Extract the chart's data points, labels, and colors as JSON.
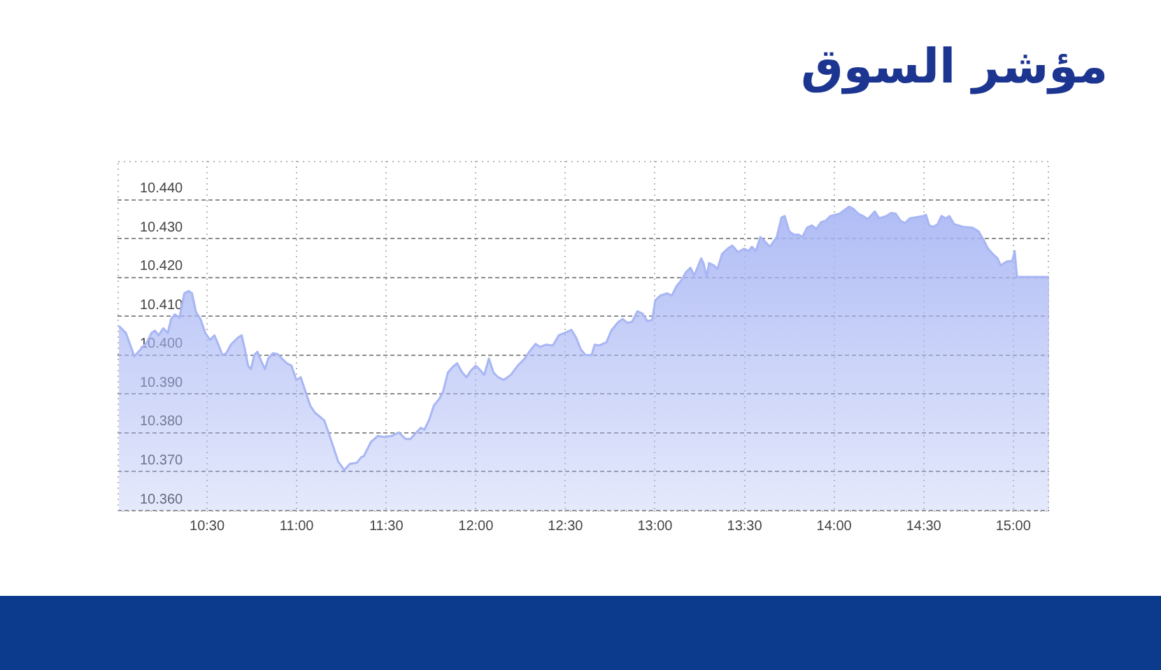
{
  "chart_data": {
    "type": "area",
    "title": "مؤشر السوق",
    "color": "#a8b6f4",
    "grid": true,
    "xlim": [
      10,
      15.2
    ],
    "ylim": [
      10.36,
      10.45
    ],
    "xticks": [
      {
        "value": 10.5,
        "label": "10:30"
      },
      {
        "value": 11,
        "label": "11:00"
      },
      {
        "value": 11.5,
        "label": "11:30"
      },
      {
        "value": 12,
        "label": "12:00"
      },
      {
        "value": 12.5,
        "label": "12:30"
      },
      {
        "value": 13,
        "label": "13:00"
      },
      {
        "value": 13.5,
        "label": "13:30"
      },
      {
        "value": 14,
        "label": "14:00"
      },
      {
        "value": 14.5,
        "label": "14:30"
      },
      {
        "value": 15,
        "label": "15:00"
      }
    ],
    "yticks": [
      {
        "value": 10.36,
        "label": "10.360"
      },
      {
        "value": 10.37,
        "label": "10.370"
      },
      {
        "value": 10.38,
        "label": "10.380"
      },
      {
        "value": 10.39,
        "label": "10.390"
      },
      {
        "value": 10.4,
        "label": "10.400"
      },
      {
        "value": 10.41,
        "label": "10.410"
      },
      {
        "value": 10.42,
        "label": "10.420"
      },
      {
        "value": 10.43,
        "label": "10.430"
      },
      {
        "value": 10.44,
        "label": "10.440"
      }
    ],
    "x": [
      10.008,
      10.047,
      10.094,
      10.164,
      10.19,
      10.209,
      10.229,
      10.256,
      10.281,
      10.299,
      10.32,
      10.346,
      10.373,
      10.398,
      10.416,
      10.438,
      10.463,
      10.49,
      10.516,
      10.541,
      10.563,
      10.586,
      10.607,
      10.633,
      10.672,
      10.693,
      10.711,
      10.729,
      10.745,
      10.763,
      10.781,
      10.802,
      10.823,
      10.841,
      10.867,
      10.893,
      10.945,
      10.971,
      10.998,
      11.023,
      11.049,
      11.076,
      11.102,
      11.154,
      11.18,
      11.206,
      11.232,
      11.266,
      11.297,
      11.336,
      11.362,
      11.375,
      11.414,
      11.453,
      11.492,
      11.531,
      11.57,
      11.609,
      11.635,
      11.662,
      11.693,
      11.713,
      11.74,
      11.766,
      11.797,
      11.818,
      11.844,
      11.87,
      11.896,
      11.922,
      11.948,
      11.974,
      12.0,
      12.026,
      12.047,
      12.073,
      12.099,
      12.125,
      12.156,
      12.195,
      12.234,
      12.273,
      12.299,
      12.334,
      12.359,
      12.391,
      12.43,
      12.463,
      12.495,
      12.534,
      12.56,
      12.586,
      12.612,
      12.646,
      12.664,
      12.69,
      12.729,
      12.756,
      12.795,
      12.82,
      12.846,
      12.873,
      12.902,
      12.93,
      12.957,
      12.984,
      13.002,
      13.029,
      13.068,
      13.094,
      13.12,
      13.151,
      13.172,
      13.198,
      13.219,
      13.237,
      13.258,
      13.271,
      13.289,
      13.302,
      13.328,
      13.349,
      13.375,
      13.406,
      13.432,
      13.463,
      13.498,
      13.523,
      13.541,
      13.563,
      13.588,
      13.615,
      13.641,
      13.68,
      13.706,
      13.724,
      13.75,
      13.776,
      13.802,
      13.823,
      13.849,
      13.875,
      13.901,
      13.927,
      13.953,
      13.979,
      14.031,
      14.057,
      14.084,
      14.109,
      14.135,
      14.162,
      14.188,
      14.227,
      14.252,
      14.291,
      14.318,
      14.344,
      14.37,
      14.396,
      14.422,
      14.495,
      14.513,
      14.531,
      14.552,
      14.578,
      14.599,
      14.625,
      14.643,
      14.67,
      14.721,
      14.773,
      14.807,
      14.834,
      14.859,
      14.885,
      14.912,
      14.93,
      14.963,
      14.995,
      15.008,
      15.021,
      15.2
    ],
    "values": [
      10.4075,
      10.4057,
      10.3997,
      10.4033,
      10.4057,
      10.4063,
      10.4051,
      10.4069,
      10.4057,
      10.4093,
      10.4105,
      10.4097,
      10.4159,
      10.4165,
      10.4159,
      10.4111,
      10.4093,
      10.4057,
      10.4039,
      10.4051,
      10.4027,
      10.4,
      10.4005,
      10.4027,
      10.4045,
      10.4051,
      10.4015,
      10.3973,
      10.3964,
      10.4,
      10.4009,
      10.3985,
      10.3964,
      10.3991,
      10.4005,
      10.4003,
      10.3979,
      10.3973,
      10.3936,
      10.3943,
      10.3907,
      10.387,
      10.3852,
      10.3832,
      10.3798,
      10.3762,
      10.3726,
      10.3704,
      10.372,
      10.3723,
      10.3738,
      10.374,
      10.3776,
      10.3792,
      10.3789,
      10.3792,
      10.3801,
      10.3784,
      10.3784,
      10.3798,
      10.3813,
      10.3808,
      10.3834,
      10.387,
      10.3888,
      10.3907,
      10.3955,
      10.3969,
      10.3979,
      10.3957,
      10.3943,
      10.3961,
      10.3973,
      10.3961,
      10.3949,
      10.3991,
      10.3955,
      10.3943,
      10.3936,
      10.3949,
      10.3973,
      10.3991,
      10.4009,
      10.4029,
      10.4021,
      10.4027,
      10.4025,
      10.4051,
      10.4057,
      10.4065,
      10.4045,
      10.4015,
      10.4,
      10.4,
      10.4027,
      10.4025,
      10.4033,
      10.4063,
      10.4085,
      10.4093,
      10.4083,
      10.4086,
      10.4113,
      10.4107,
      10.4088,
      10.409,
      10.4141,
      10.4153,
      10.4159,
      10.4153,
      10.4177,
      10.4195,
      10.4213,
      10.4225,
      10.4205,
      10.4225,
      10.4249,
      10.4237,
      10.4201,
      10.4237,
      10.4231,
      10.4222,
      10.4261,
      10.4274,
      10.4282,
      10.4265,
      10.4274,
      10.4268,
      10.4279,
      10.4268,
      10.4304,
      10.4292,
      10.4279,
      10.4304,
      10.4354,
      10.4358,
      10.4318,
      10.431,
      10.431,
      10.4304,
      10.4328,
      10.4334,
      10.4325,
      10.4342,
      10.4346,
      10.4358,
      10.4364,
      10.4373,
      10.4382,
      10.4376,
      10.4364,
      10.4358,
      10.435,
      10.437,
      10.4352,
      10.4358,
      10.4366,
      10.4364,
      10.4346,
      10.434,
      10.4352,
      10.4358,
      10.4361,
      10.4334,
      10.433,
      10.4337,
      10.4358,
      10.4352,
      10.4358,
      10.4337,
      10.433,
      10.4328,
      10.4318,
      10.4297,
      10.4274,
      10.4261,
      10.4249,
      10.4231,
      10.4241,
      10.4243,
      10.4268,
      10.4201,
      10.4201
    ]
  }
}
